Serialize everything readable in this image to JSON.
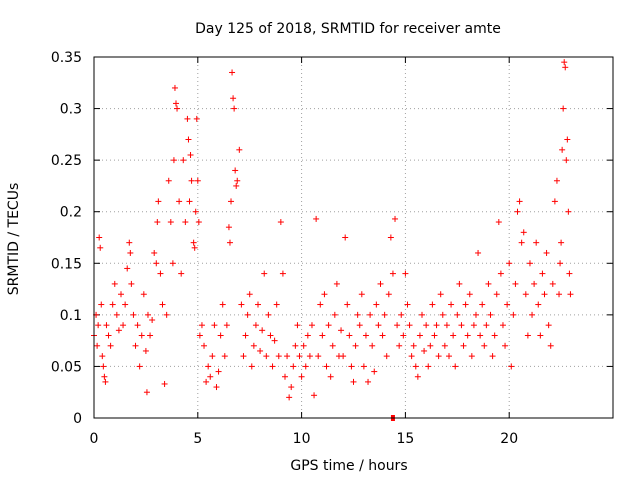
{
  "chart_data": {
    "type": "scatter",
    "title": "Day 125 of 2018, SRMTID for receiver amte",
    "xlabel": "GPS time / hours",
    "ylabel": "SRMTID / TECUs",
    "xlim": [
      0,
      25
    ],
    "ylim": [
      0,
      0.35
    ],
    "xticks": [
      0,
      5,
      10,
      15,
      20
    ],
    "xtick_labels": [
      "0",
      "5",
      "10",
      "15",
      "20"
    ],
    "yticks": [
      0,
      0.05,
      0.1,
      0.15,
      0.2,
      0.25,
      0.3,
      0.35
    ],
    "ytick_labels": [
      "0",
      "0.05",
      "0.1",
      "0.15",
      "0.2",
      "0.25",
      "0.3",
      "0.35"
    ],
    "grid": true,
    "marker": "+",
    "color": "#ff0000",
    "series": [
      {
        "name": "SRMTID",
        "points": [
          [
            0.0,
            0.08
          ],
          [
            0.1,
            0.1
          ],
          [
            0.15,
            0.07
          ],
          [
            0.2,
            0.09
          ],
          [
            0.25,
            0.175
          ],
          [
            0.3,
            0.165
          ],
          [
            0.35,
            0.11
          ],
          [
            0.4,
            0.06
          ],
          [
            0.45,
            0.05
          ],
          [
            0.5,
            0.04
          ],
          [
            0.55,
            0.035
          ],
          [
            0.6,
            0.09
          ],
          [
            0.7,
            0.08
          ],
          [
            0.8,
            0.07
          ],
          [
            0.9,
            0.11
          ],
          [
            1.0,
            0.13
          ],
          [
            1.1,
            0.1
          ],
          [
            1.2,
            0.085
          ],
          [
            1.3,
            0.12
          ],
          [
            1.4,
            0.09
          ],
          [
            1.5,
            0.11
          ],
          [
            1.6,
            0.145
          ],
          [
            1.7,
            0.17
          ],
          [
            1.75,
            0.16
          ],
          [
            1.8,
            0.13
          ],
          [
            1.9,
            0.1
          ],
          [
            2.0,
            0.07
          ],
          [
            2.1,
            0.09
          ],
          [
            2.2,
            0.05
          ],
          [
            2.3,
            0.08
          ],
          [
            2.4,
            0.12
          ],
          [
            2.5,
            0.065
          ],
          [
            2.55,
            0.025
          ],
          [
            2.6,
            0.1
          ],
          [
            2.7,
            0.08
          ],
          [
            2.8,
            0.095
          ],
          [
            2.9,
            0.16
          ],
          [
            3.0,
            0.15
          ],
          [
            3.05,
            0.19
          ],
          [
            3.1,
            0.21
          ],
          [
            3.2,
            0.14
          ],
          [
            3.3,
            0.11
          ],
          [
            3.4,
            0.033
          ],
          [
            3.5,
            0.1
          ],
          [
            3.6,
            0.23
          ],
          [
            3.7,
            0.19
          ],
          [
            3.8,
            0.15
          ],
          [
            3.85,
            0.25
          ],
          [
            3.9,
            0.32
          ],
          [
            3.95,
            0.305
          ],
          [
            4.0,
            0.3
          ],
          [
            4.1,
            0.21
          ],
          [
            4.2,
            0.14
          ],
          [
            4.3,
            0.25
          ],
          [
            4.4,
            0.19
          ],
          [
            4.5,
            0.29
          ],
          [
            4.55,
            0.27
          ],
          [
            4.6,
            0.21
          ],
          [
            4.65,
            0.255
          ],
          [
            4.7,
            0.23
          ],
          [
            4.8,
            0.17
          ],
          [
            4.85,
            0.165
          ],
          [
            4.9,
            0.2
          ],
          [
            4.95,
            0.29
          ],
          [
            5.0,
            0.23
          ],
          [
            5.05,
            0.19
          ],
          [
            5.1,
            0.08
          ],
          [
            5.2,
            0.09
          ],
          [
            5.3,
            0.07
          ],
          [
            5.4,
            0.035
          ],
          [
            5.5,
            0.05
          ],
          [
            5.6,
            0.04
          ],
          [
            5.7,
            0.06
          ],
          [
            5.8,
            0.09
          ],
          [
            5.9,
            0.03
          ],
          [
            6.0,
            0.045
          ],
          [
            6.1,
            0.08
          ],
          [
            6.2,
            0.11
          ],
          [
            6.3,
            0.06
          ],
          [
            6.4,
            0.09
          ],
          [
            6.5,
            0.185
          ],
          [
            6.55,
            0.17
          ],
          [
            6.6,
            0.21
          ],
          [
            6.65,
            0.335
          ],
          [
            6.7,
            0.31
          ],
          [
            6.75,
            0.3
          ],
          [
            6.8,
            0.24
          ],
          [
            6.85,
            0.225
          ],
          [
            6.9,
            0.23
          ],
          [
            7.0,
            0.26
          ],
          [
            7.1,
            0.11
          ],
          [
            7.2,
            0.06
          ],
          [
            7.3,
            0.08
          ],
          [
            7.4,
            0.1
          ],
          [
            7.5,
            0.12
          ],
          [
            7.6,
            0.05
          ],
          [
            7.7,
            0.07
          ],
          [
            7.8,
            0.09
          ],
          [
            7.9,
            0.11
          ],
          [
            8.0,
            0.065
          ],
          [
            8.1,
            0.085
          ],
          [
            8.2,
            0.14
          ],
          [
            8.3,
            0.06
          ],
          [
            8.4,
            0.1
          ],
          [
            8.5,
            0.08
          ],
          [
            8.6,
            0.05
          ],
          [
            8.7,
            0.075
          ],
          [
            8.8,
            0.11
          ],
          [
            8.9,
            0.06
          ],
          [
            9.0,
            0.19
          ],
          [
            9.1,
            0.14
          ],
          [
            9.2,
            0.04
          ],
          [
            9.3,
            0.06
          ],
          [
            9.4,
            0.02
          ],
          [
            9.5,
            0.03
          ],
          [
            9.6,
            0.05
          ],
          [
            9.7,
            0.07
          ],
          [
            9.8,
            0.09
          ],
          [
            9.9,
            0.06
          ],
          [
            10.0,
            0.04
          ],
          [
            10.1,
            0.07
          ],
          [
            10.2,
            0.05
          ],
          [
            10.3,
            0.08
          ],
          [
            10.4,
            0.06
          ],
          [
            10.5,
            0.09
          ],
          [
            10.6,
            0.022
          ],
          [
            10.7,
            0.193
          ],
          [
            10.8,
            0.06
          ],
          [
            10.9,
            0.11
          ],
          [
            11.0,
            0.08
          ],
          [
            11.1,
            0.12
          ],
          [
            11.2,
            0.05
          ],
          [
            11.3,
            0.09
          ],
          [
            11.4,
            0.04
          ],
          [
            11.5,
            0.07
          ],
          [
            11.6,
            0.1
          ],
          [
            11.7,
            0.13
          ],
          [
            11.8,
            0.06
          ],
          [
            11.9,
            0.085
          ],
          [
            12.0,
            0.06
          ],
          [
            12.1,
            0.175
          ],
          [
            12.2,
            0.11
          ],
          [
            12.3,
            0.08
          ],
          [
            12.4,
            0.05
          ],
          [
            12.5,
            0.035
          ],
          [
            12.6,
            0.07
          ],
          [
            12.7,
            0.1
          ],
          [
            12.8,
            0.09
          ],
          [
            12.9,
            0.12
          ],
          [
            13.0,
            0.05
          ],
          [
            13.1,
            0.08
          ],
          [
            13.2,
            0.035
          ],
          [
            13.3,
            0.1
          ],
          [
            13.4,
            0.07
          ],
          [
            13.5,
            0.045
          ],
          [
            13.6,
            0.11
          ],
          [
            13.7,
            0.09
          ],
          [
            13.8,
            0.13
          ],
          [
            13.9,
            0.08
          ],
          [
            14.0,
            0.1
          ],
          [
            14.1,
            0.06
          ],
          [
            14.2,
            0.12
          ],
          [
            14.3,
            0.175
          ],
          [
            14.4,
            0.14
          ],
          [
            14.5,
            0.193
          ],
          [
            14.6,
            0.09
          ],
          [
            14.7,
            0.07
          ],
          [
            14.8,
            0.1
          ],
          [
            14.9,
            0.08
          ],
          [
            15.0,
            0.14
          ],
          [
            15.1,
            0.11
          ],
          [
            15.2,
            0.09
          ],
          [
            15.3,
            0.06
          ],
          [
            15.4,
            0.07
          ],
          [
            15.5,
            0.05
          ],
          [
            15.6,
            0.04
          ],
          [
            15.7,
            0.08
          ],
          [
            15.8,
            0.1
          ],
          [
            15.9,
            0.065
          ],
          [
            16.0,
            0.09
          ],
          [
            16.1,
            0.05
          ],
          [
            16.2,
            0.07
          ],
          [
            16.3,
            0.11
          ],
          [
            16.4,
            0.08
          ],
          [
            16.5,
            0.09
          ],
          [
            16.6,
            0.06
          ],
          [
            16.7,
            0.12
          ],
          [
            16.8,
            0.1
          ],
          [
            16.9,
            0.07
          ],
          [
            17.0,
            0.09
          ],
          [
            17.1,
            0.06
          ],
          [
            17.2,
            0.11
          ],
          [
            17.3,
            0.08
          ],
          [
            17.4,
            0.05
          ],
          [
            17.5,
            0.1
          ],
          [
            17.6,
            0.13
          ],
          [
            17.7,
            0.09
          ],
          [
            17.8,
            0.07
          ],
          [
            17.9,
            0.11
          ],
          [
            18.0,
            0.08
          ],
          [
            18.1,
            0.12
          ],
          [
            18.2,
            0.06
          ],
          [
            18.3,
            0.09
          ],
          [
            18.4,
            0.1
          ],
          [
            18.5,
            0.16
          ],
          [
            18.6,
            0.08
          ],
          [
            18.7,
            0.11
          ],
          [
            18.8,
            0.07
          ],
          [
            18.9,
            0.09
          ],
          [
            19.0,
            0.13
          ],
          [
            19.1,
            0.1
          ],
          [
            19.2,
            0.06
          ],
          [
            19.3,
            0.08
          ],
          [
            19.4,
            0.12
          ],
          [
            19.5,
            0.19
          ],
          [
            19.6,
            0.14
          ],
          [
            19.7,
            0.09
          ],
          [
            19.8,
            0.07
          ],
          [
            19.9,
            0.11
          ],
          [
            20.0,
            0.15
          ],
          [
            20.1,
            0.05
          ],
          [
            20.2,
            0.1
          ],
          [
            20.3,
            0.13
          ],
          [
            20.4,
            0.2
          ],
          [
            20.5,
            0.21
          ],
          [
            20.6,
            0.17
          ],
          [
            20.7,
            0.18
          ],
          [
            20.8,
            0.12
          ],
          [
            20.9,
            0.08
          ],
          [
            21.0,
            0.15
          ],
          [
            21.1,
            0.1
          ],
          [
            21.2,
            0.13
          ],
          [
            21.3,
            0.17
          ],
          [
            21.4,
            0.11
          ],
          [
            21.5,
            0.08
          ],
          [
            21.6,
            0.14
          ],
          [
            21.7,
            0.12
          ],
          [
            21.8,
            0.16
          ],
          [
            21.9,
            0.09
          ],
          [
            22.0,
            0.07
          ],
          [
            22.1,
            0.13
          ],
          [
            22.2,
            0.21
          ],
          [
            22.3,
            0.23
          ],
          [
            22.4,
            0.12
          ],
          [
            22.45,
            0.15
          ],
          [
            22.5,
            0.17
          ],
          [
            22.55,
            0.26
          ],
          [
            22.6,
            0.3
          ],
          [
            22.65,
            0.345
          ],
          [
            22.7,
            0.34
          ],
          [
            22.75,
            0.25
          ],
          [
            22.8,
            0.27
          ],
          [
            22.85,
            0.2
          ],
          [
            22.9,
            0.14
          ],
          [
            22.95,
            0.12
          ]
        ]
      }
    ],
    "highlight_point": [
      14.4,
      0.0
    ]
  }
}
